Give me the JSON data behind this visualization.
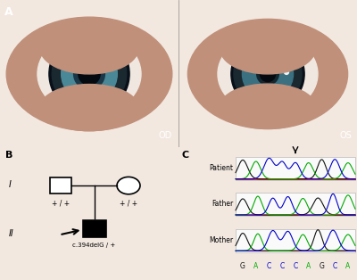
{
  "panel_A_label": "A",
  "panel_B_label": "B",
  "panel_C_label": "C",
  "eye_left_label": "OD",
  "eye_right_label": "OS",
  "generation_I": "I",
  "generation_II": "II",
  "proband_label": "c.394delG / +",
  "parent_label": "+ / +",
  "seq_labels": [
    "Patient",
    "Father",
    "Mother"
  ],
  "seq_bases": [
    "G",
    "A",
    "C",
    "C",
    "C",
    "A",
    "G",
    "C",
    "A"
  ],
  "bg_color": "#f2e8e0",
  "eye_skin_left": "#c89880",
  "eye_skin_right": "#c89880",
  "iris_dark": "#0d1820",
  "iris_teal_left": "#4a8090",
  "iris_teal_right": "#3a6070",
  "pupil_left": "#2a5060",
  "pupil_right": "#1a3040",
  "seq_color_G": "#111111",
  "seq_color_A": "#00aa00",
  "seq_color_C": "#0000cc",
  "seq_color_T": "#cc0000"
}
